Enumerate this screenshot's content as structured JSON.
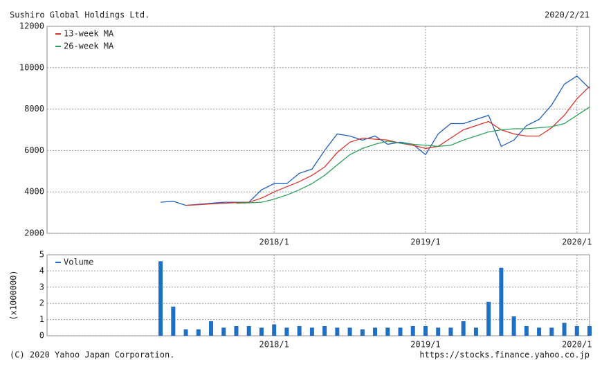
{
  "header": {
    "title": "Sushiro Global Holdings Ltd.",
    "date": "2020/2/21"
  },
  "footer": {
    "copyright": "(C) 2020 Yahoo Japan Corporation.",
    "url": "https://stocks.finance.yahoo.co.jp"
  },
  "chart_data": [
    {
      "type": "line",
      "x": [
        "2017/4",
        "2017/5",
        "2017/6",
        "2017/7",
        "2017/8",
        "2017/9",
        "2017/10",
        "2017/11",
        "2017/12",
        "2018/1",
        "2018/2",
        "2018/3",
        "2018/4",
        "2018/5",
        "2018/6",
        "2018/7",
        "2018/8",
        "2018/9",
        "2018/10",
        "2018/11",
        "2018/12",
        "2019/1",
        "2019/2",
        "2019/3",
        "2019/4",
        "2019/5",
        "2019/6",
        "2019/7",
        "2019/8",
        "2019/9",
        "2019/10",
        "2019/11",
        "2019/12",
        "2020/1",
        "2020/2"
      ],
      "xlim": [
        "2016/7",
        "2020/2"
      ],
      "xticks": [
        "2018/1",
        "2019/1",
        "2020/1"
      ],
      "ylim": [
        2000,
        12000
      ],
      "yticks": [
        2000,
        4000,
        6000,
        8000,
        10000,
        12000
      ],
      "grid": true,
      "legend": "upper left",
      "series": [
        {
          "color": "#1f5fbf",
          "values": [
            3500,
            3550,
            3350,
            3400,
            3450,
            3500,
            3500,
            3500,
            4100,
            4400,
            4400,
            4900,
            5100,
            6000,
            6800,
            6700,
            6500,
            6700,
            6300,
            6400,
            6300,
            5800,
            6800,
            7300,
            7300,
            7500,
            7700,
            6200,
            6500,
            7200,
            7500,
            8200,
            9200,
            9600,
            9000
          ]
        },
        {
          "name": "13-week MA",
          "color": "#d9342b",
          "values": [
            null,
            null,
            3350,
            3380,
            3420,
            3450,
            3480,
            3500,
            3700,
            4000,
            4250,
            4500,
            4800,
            5200,
            5900,
            6400,
            6600,
            6550,
            6500,
            6350,
            6250,
            6100,
            6200,
            6600,
            7000,
            7200,
            7400,
            7000,
            6800,
            6700,
            6700,
            7100,
            7700,
            8500,
            9100
          ]
        },
        {
          "name": "26-week MA",
          "color": "#2ca05a",
          "values": [
            null,
            null,
            null,
            null,
            null,
            null,
            3450,
            3470,
            3500,
            3650,
            3850,
            4100,
            4400,
            4800,
            5300,
            5800,
            6100,
            6300,
            6450,
            6350,
            6300,
            6250,
            6200,
            6250,
            6500,
            6700,
            6900,
            7000,
            7050,
            7050,
            7100,
            7150,
            7300,
            7700,
            8100
          ]
        }
      ]
    },
    {
      "type": "bar",
      "x": [
        "2017/4",
        "2017/5",
        "2017/6",
        "2017/7",
        "2017/8",
        "2017/9",
        "2017/10",
        "2017/11",
        "2017/12",
        "2018/1",
        "2018/2",
        "2018/3",
        "2018/4",
        "2018/5",
        "2018/6",
        "2018/7",
        "2018/8",
        "2018/9",
        "2018/10",
        "2018/11",
        "2018/12",
        "2019/1",
        "2019/2",
        "2019/3",
        "2019/4",
        "2019/5",
        "2019/6",
        "2019/7",
        "2019/8",
        "2019/9",
        "2019/10",
        "2019/11",
        "2019/12",
        "2020/1",
        "2020/2"
      ],
      "xlim": [
        "2016/7",
        "2020/2"
      ],
      "xticks": [
        "2018/1",
        "2019/1",
        "2020/1"
      ],
      "ylim": [
        0,
        5
      ],
      "yticks": [
        0,
        1,
        2,
        3,
        4,
        5
      ],
      "ylabel": "(x1000000)",
      "grid": true,
      "legend": "upper left",
      "series": [
        {
          "name": "Volume",
          "color": "#1f6fc5",
          "values": [
            4.6,
            1.8,
            0.4,
            0.4,
            0.9,
            0.5,
            0.6,
            0.6,
            0.5,
            0.7,
            0.5,
            0.6,
            0.5,
            0.6,
            0.5,
            0.5,
            0.4,
            0.5,
            0.5,
            0.5,
            0.6,
            0.6,
            0.5,
            0.5,
            0.9,
            0.5,
            2.1,
            4.2,
            1.2,
            0.6,
            0.5,
            0.5,
            0.8,
            0.6,
            0.6
          ]
        }
      ]
    }
  ]
}
